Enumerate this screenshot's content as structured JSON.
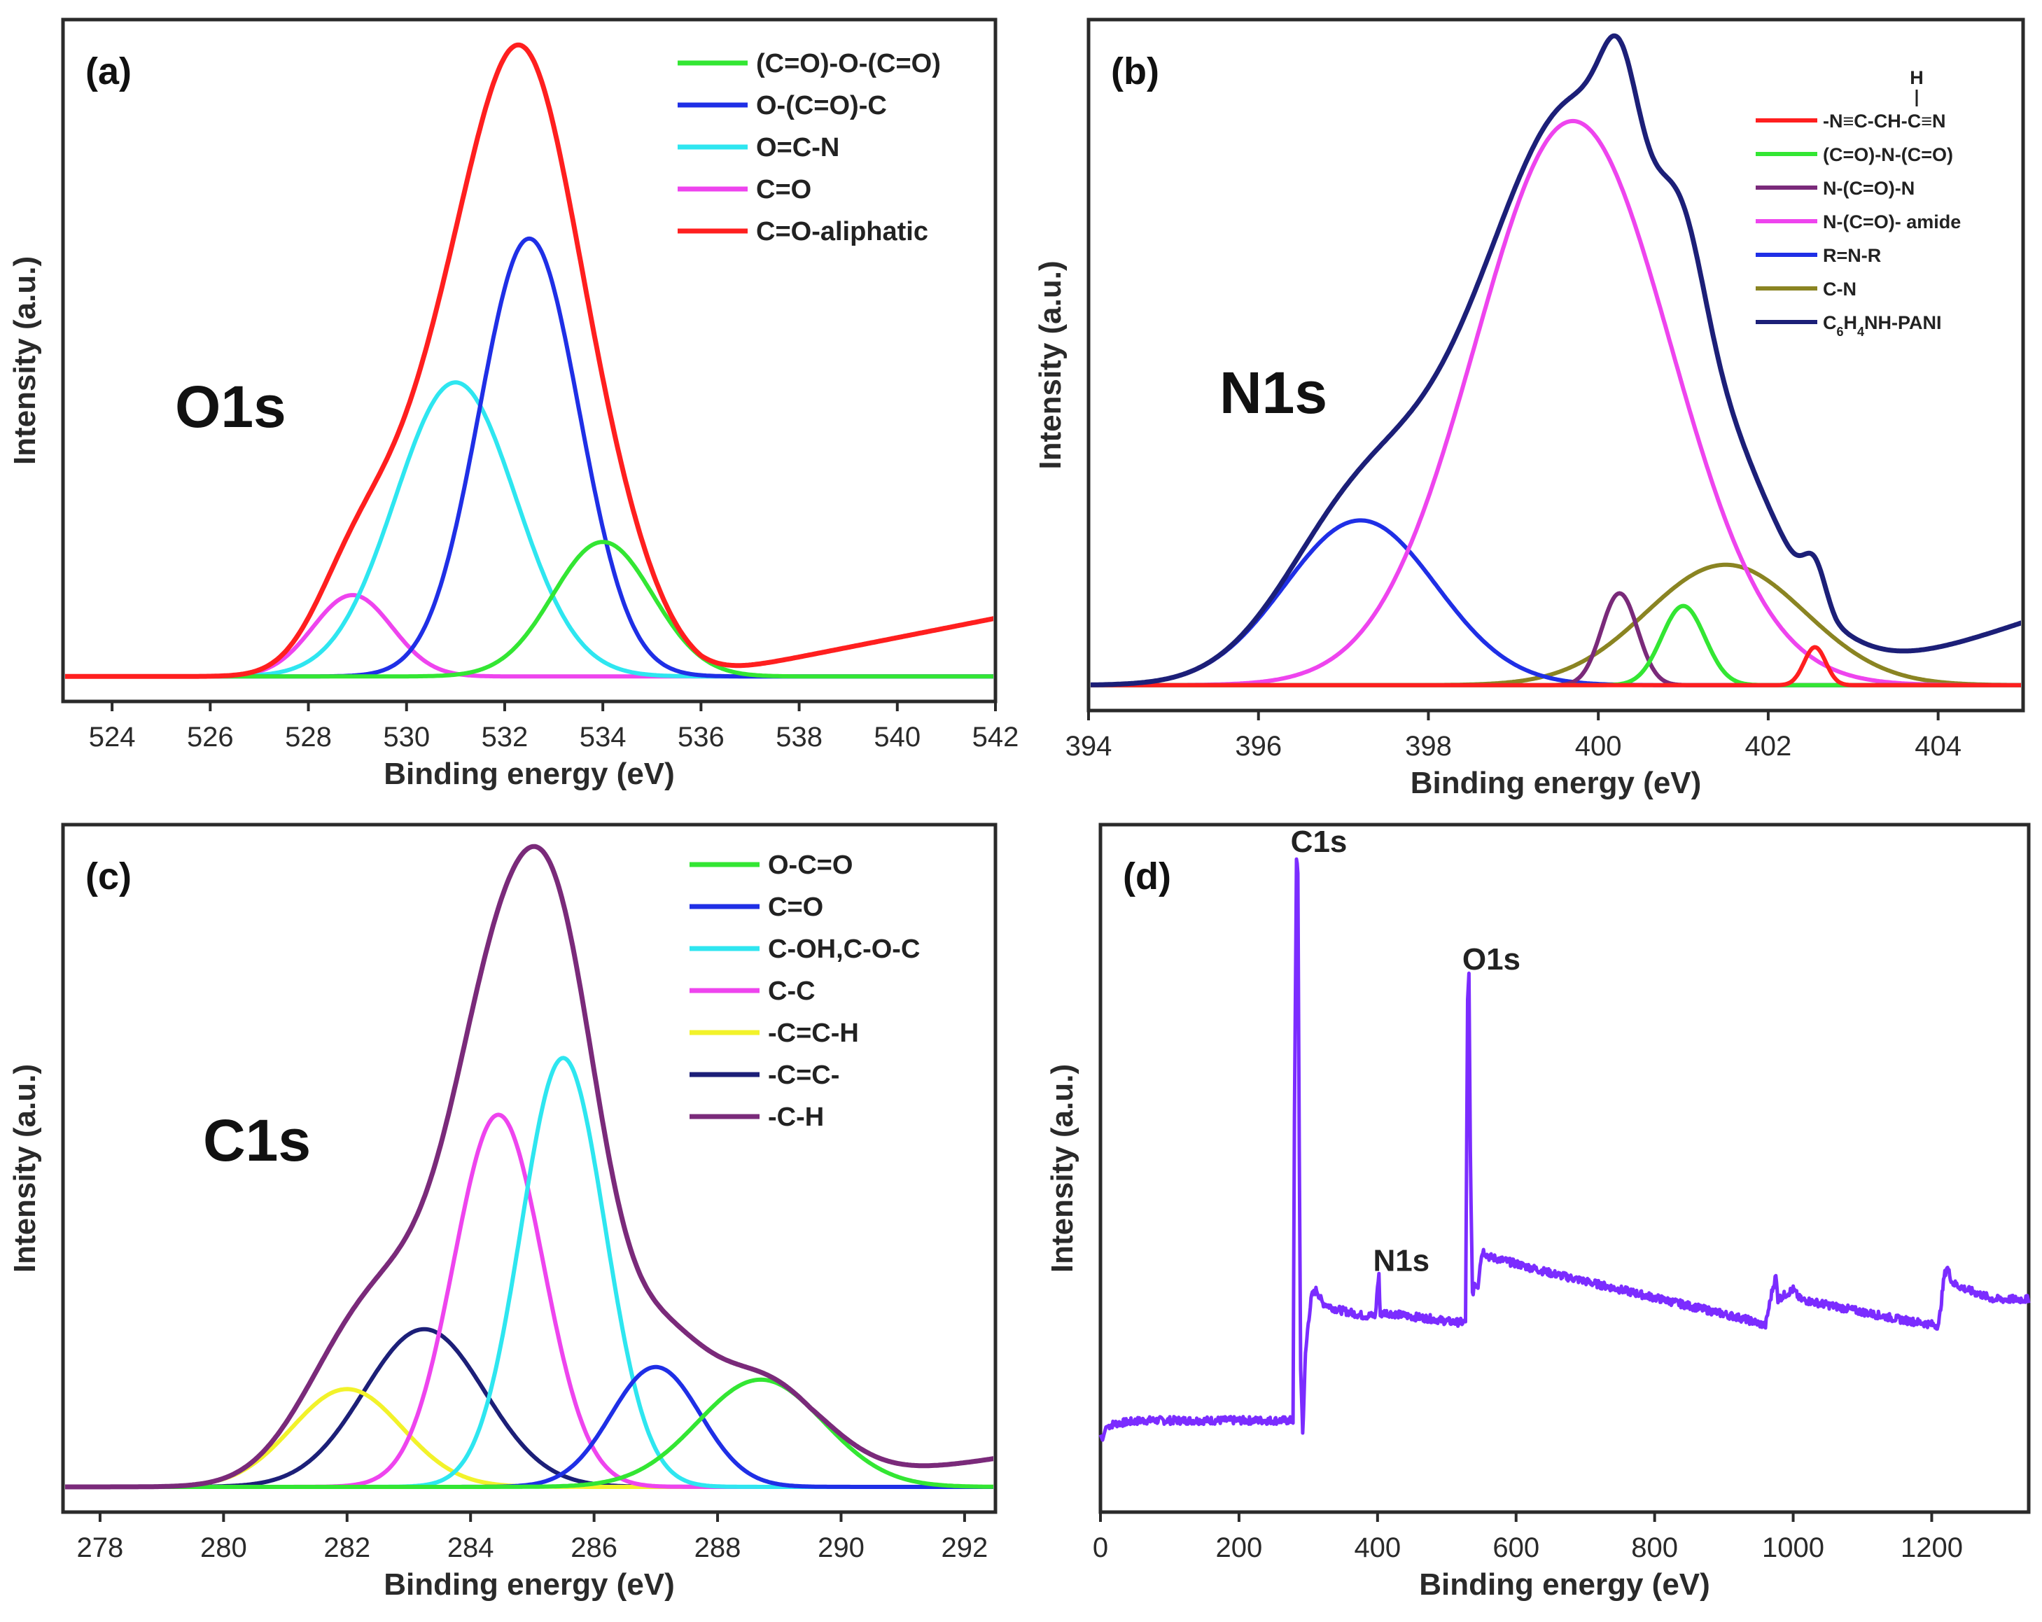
{
  "colors": {
    "green": "#33e633",
    "blue": "#1f2fe6",
    "cyan": "#2ee6f0",
    "magenta": "#ee44ee",
    "red": "#ff1f1f",
    "purple": "#7a2a7a",
    "navy": "#1c1f78",
    "olive": "#8a8422",
    "yellow": "#f2f22a",
    "violet": "#7b2cff",
    "frame": "#2a2a2a"
  },
  "chart_data": [
    {
      "id": "a",
      "type": "line",
      "panel_label": "(a)",
      "core_label": "O1s",
      "xlabel": "Binding energy (eV)",
      "ylabel": "Intensity (a.u.)",
      "xlim": [
        523,
        542
      ],
      "ylim": [
        -0.04,
        1.05
      ],
      "xticks": [
        524,
        526,
        528,
        530,
        532,
        534,
        536,
        538,
        540,
        542
      ],
      "legend_position": "top-right",
      "baseline": 0.0,
      "components": [
        {
          "name": "(C=O)-O-(C=O)",
          "color": "green",
          "center": 534.0,
          "fwhm": 2.4,
          "height": 0.215
        },
        {
          "name": "O-(C=O)-C",
          "color": "blue",
          "center": 532.5,
          "fwhm": 2.4,
          "height": 0.7
        },
        {
          "name": "O=C-N",
          "color": "cyan",
          "center": 531.0,
          "fwhm": 2.9,
          "height": 0.47
        },
        {
          "name": "C=O",
          "color": "magenta",
          "center": 528.9,
          "fwhm": 1.9,
          "height": 0.13
        }
      ],
      "envelope": {
        "name": "C=O-aliphatic",
        "color": "red",
        "extra": {
          "start": 536.0,
          "slope": 0.0155
        }
      },
      "legend_order": [
        "(C=O)-O-(C=O)",
        "O-(C=O)-C",
        "O=C-N",
        "C=O",
        "C=O-aliphatic"
      ]
    },
    {
      "id": "b",
      "type": "line",
      "panel_label": "(b)",
      "core_label": "N1s",
      "xlabel": "Binding energy (eV)",
      "ylabel": "Intensity (a.u.)",
      "xlim": [
        394,
        405
      ],
      "ylim": [
        -0.04,
        1.05
      ],
      "xticks": [
        394,
        396,
        398,
        400,
        402,
        404
      ],
      "legend_position": "top-right",
      "baseline": 0.0,
      "components": [
        {
          "name": "-N≡C-CH-C≡N",
          "color": "red",
          "center": 402.55,
          "fwhm": 0.3,
          "height": 0.06
        },
        {
          "name": "(C=O)-N-(C=O)",
          "color": "green",
          "center": 401.0,
          "fwhm": 0.6,
          "height": 0.125
        },
        {
          "name": "N-(C=O)-N",
          "color": "purple",
          "center": 400.25,
          "fwhm": 0.5,
          "height": 0.145
        },
        {
          "name": "N-(C=O)- amide",
          "color": "magenta",
          "center": 399.7,
          "fwhm": 2.7,
          "height": 0.89
        },
        {
          "name": "R=N-R",
          "color": "blue",
          "center": 397.2,
          "fwhm": 2.1,
          "height": 0.26
        },
        {
          "name": "C-N",
          "color": "olive",
          "center": 401.5,
          "fwhm": 2.2,
          "height": 0.19
        }
      ],
      "envelope": {
        "name": "C6H4NH-PANI",
        "color": "navy",
        "extra": {
          "start": 402.8,
          "slope": 0.045
        }
      },
      "legend_order": [
        "-N≡C-CH-C≡N",
        "(C=O)-N-(C=O)",
        "N-(C=O)-N",
        "N-(C=O)- amide",
        "R=N-R",
        "C-N",
        "C6H4NH-PANI"
      ],
      "legend_formula_h": "H"
    },
    {
      "id": "c",
      "type": "line",
      "panel_label": "(c)",
      "core_label": "C1s",
      "xlabel": "Binding energy (eV)",
      "ylabel": "Intensity (a.u.)",
      "xlim": [
        277.4,
        292.5
      ],
      "ylim": [
        -0.04,
        1.05
      ],
      "xticks": [
        278,
        280,
        282,
        284,
        286,
        288,
        290,
        292
      ],
      "legend_position": "top-right",
      "baseline": 0.0,
      "components": [
        {
          "name": "O-C=O",
          "color": "green",
          "center": 288.7,
          "fwhm": 2.4,
          "height": 0.17
        },
        {
          "name": "C=O",
          "color": "blue",
          "center": 287.0,
          "fwhm": 1.7,
          "height": 0.19
        },
        {
          "name": "C-OH,C-O-C",
          "color": "cyan",
          "center": 285.5,
          "fwhm": 1.6,
          "height": 0.68
        },
        {
          "name": "C-C",
          "color": "magenta",
          "center": 284.45,
          "fwhm": 1.7,
          "height": 0.59
        },
        {
          "name": "-C=C-H",
          "color": "yellow",
          "center": 282.0,
          "fwhm": 2.1,
          "height": 0.155
        },
        {
          "name": "-C=C-",
          "color": "navy",
          "center": 283.25,
          "fwhm": 2.3,
          "height": 0.25
        }
      ],
      "envelope": {
        "name": "-C-H",
        "color": "purple",
        "extra": {
          "start": 289.5,
          "slope": 0.015
        }
      },
      "legend_order": [
        "O-C=O",
        "C=O",
        "C-OH,C-O-C",
        "C-C",
        "-C=C-H",
        "-C=C-",
        "-C-H"
      ]
    },
    {
      "id": "d",
      "type": "line",
      "panel_label": "(d)",
      "xlabel": "Binding energy (eV)",
      "ylabel": "Intensity (a.u.)",
      "xlim": [
        0,
        1340
      ],
      "ylim": [
        0,
        1.05
      ],
      "xticks": [
        0,
        200,
        400,
        600,
        800,
        1000,
        1200
      ],
      "color": "violet",
      "survey": [
        [
          0,
          0.118
        ],
        [
          3,
          0.11
        ],
        [
          8,
          0.13
        ],
        [
          20,
          0.135
        ],
        [
          60,
          0.14
        ],
        [
          120,
          0.14
        ],
        [
          200,
          0.14
        ],
        [
          278,
          0.14
        ],
        [
          280,
          0.6
        ],
        [
          283,
          1.0
        ],
        [
          285,
          0.98
        ],
        [
          287,
          0.55
        ],
        [
          289,
          0.22
        ],
        [
          292,
          0.12
        ],
        [
          296,
          0.24
        ],
        [
          300,
          0.29
        ],
        [
          305,
          0.33
        ],
        [
          312,
          0.34
        ],
        [
          320,
          0.32
        ],
        [
          340,
          0.31
        ],
        [
          360,
          0.305
        ],
        [
          380,
          0.3
        ],
        [
          397,
          0.3
        ],
        [
          400,
          0.345
        ],
        [
          402,
          0.36
        ],
        [
          404,
          0.3
        ],
        [
          410,
          0.305
        ],
        [
          440,
          0.3
        ],
        [
          480,
          0.295
        ],
        [
          510,
          0.29
        ],
        [
          527,
          0.29
        ],
        [
          530,
          0.78
        ],
        [
          532,
          0.82
        ],
        [
          534,
          0.55
        ],
        [
          537,
          0.33
        ],
        [
          540,
          0.35
        ],
        [
          545,
          0.345
        ],
        [
          548,
          0.38
        ],
        [
          552,
          0.4
        ],
        [
          560,
          0.39
        ],
        [
          580,
          0.385
        ],
        [
          650,
          0.365
        ],
        [
          750,
          0.34
        ],
        [
          850,
          0.315
        ],
        [
          930,
          0.295
        ],
        [
          960,
          0.285
        ],
        [
          970,
          0.34
        ],
        [
          975,
          0.36
        ],
        [
          978,
          0.325
        ],
        [
          985,
          0.33
        ],
        [
          1000,
          0.34
        ],
        [
          1010,
          0.325
        ],
        [
          1080,
          0.31
        ],
        [
          1150,
          0.295
        ],
        [
          1210,
          0.285
        ],
        [
          1218,
          0.36
        ],
        [
          1222,
          0.375
        ],
        [
          1230,
          0.35
        ],
        [
          1250,
          0.34
        ],
        [
          1290,
          0.325
        ],
        [
          1340,
          0.325
        ]
      ],
      "noise": 0.006,
      "peak_labels": [
        {
          "text": "C1s",
          "x": 283,
          "y": 1.0
        },
        {
          "text": "N1s",
          "x": 402,
          "y": 0.36
        },
        {
          "text": "O1s",
          "x": 532,
          "y": 0.82
        }
      ]
    }
  ]
}
